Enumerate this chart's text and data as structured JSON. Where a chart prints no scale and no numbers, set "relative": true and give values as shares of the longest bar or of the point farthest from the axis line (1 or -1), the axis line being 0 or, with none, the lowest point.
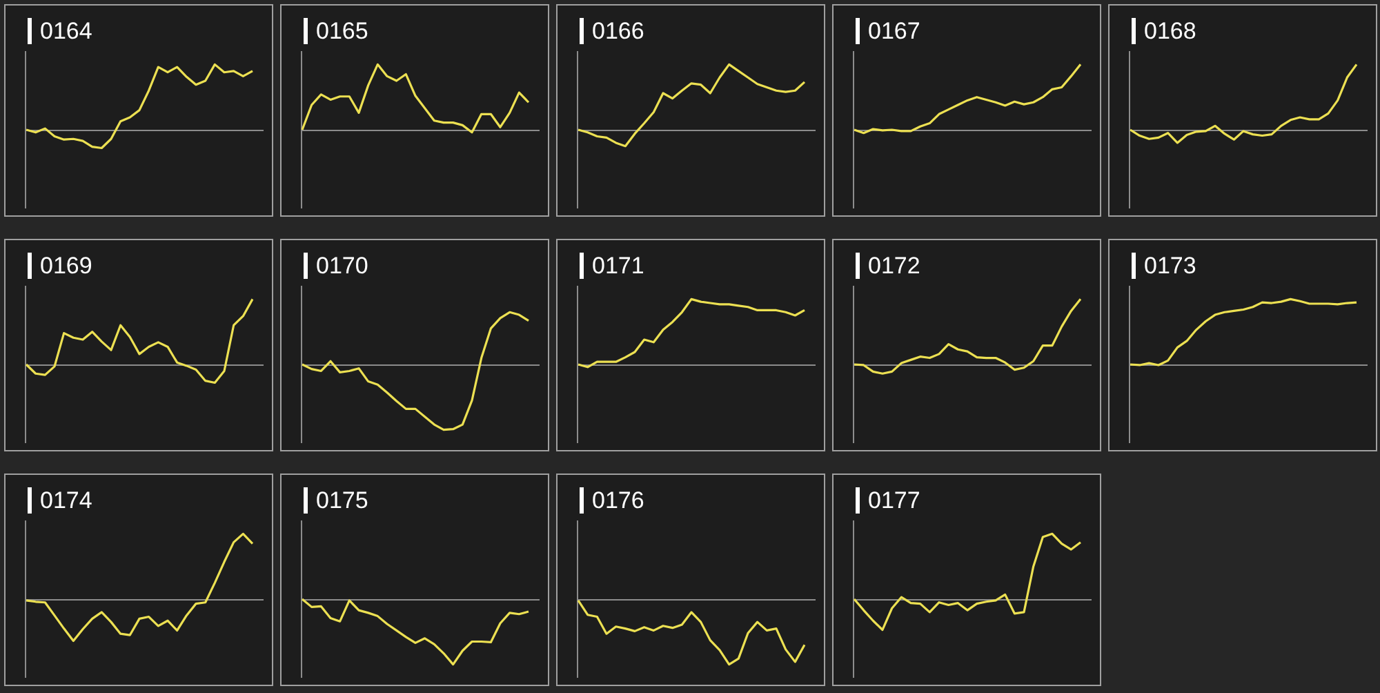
{
  "chart_data": [
    {
      "type": "line",
      "title": "0164",
      "relative": true,
      "color": "#ece052",
      "categories": [
        null,
        null,
        null,
        null,
        null,
        null,
        null,
        null,
        null,
        null,
        null,
        null,
        null,
        null,
        null,
        null,
        null,
        null,
        null,
        null,
        null,
        null,
        null,
        null,
        null
      ],
      "values": [
        0,
        -0.04,
        0.02,
        -0.1,
        -0.15,
        -0.14,
        -0.17,
        -0.26,
        -0.28,
        -0.14,
        0.13,
        0.19,
        0.3,
        0.6,
        0.96,
        0.88,
        0.96,
        0.81,
        0.69,
        0.75,
        1,
        0.88,
        0.9,
        0.82,
        0.9
      ]
    },
    {
      "type": "line",
      "title": "0165",
      "relative": true,
      "color": "#ece052",
      "categories": [
        null,
        null,
        null,
        null,
        null,
        null,
        null,
        null,
        null,
        null,
        null,
        null,
        null,
        null,
        null,
        null,
        null,
        null,
        null,
        null,
        null,
        null,
        null,
        null,
        null
      ],
      "values": [
        0,
        0.38,
        0.54,
        0.46,
        0.51,
        0.51,
        0.26,
        0.68,
        1,
        0.82,
        0.75,
        0.85,
        0.52,
        0.33,
        0.14,
        0.11,
        0.11,
        0.07,
        -0.04,
        0.24,
        0.24,
        0.04,
        0.26,
        0.57,
        0.42
      ]
    },
    {
      "type": "line",
      "title": "0166",
      "relative": true,
      "color": "#ece052",
      "categories": [
        null,
        null,
        null,
        null,
        null,
        null,
        null,
        null,
        null,
        null,
        null,
        null,
        null,
        null,
        null,
        null,
        null,
        null,
        null,
        null,
        null,
        null,
        null,
        null,
        null
      ],
      "values": [
        0,
        -0.04,
        -0.1,
        -0.12,
        -0.2,
        -0.25,
        -0.06,
        0.1,
        0.27,
        0.56,
        0.48,
        0.6,
        0.71,
        0.69,
        0.56,
        0.8,
        1,
        0.9,
        0.8,
        0.7,
        0.65,
        0.6,
        0.58,
        0.6,
        0.73
      ]
    },
    {
      "type": "line",
      "title": "0167",
      "relative": true,
      "color": "#ece052",
      "categories": [
        null,
        null,
        null,
        null,
        null,
        null,
        null,
        null,
        null,
        null,
        null,
        null,
        null,
        null,
        null,
        null,
        null,
        null,
        null,
        null,
        null,
        null,
        null,
        null,
        null
      ],
      "values": [
        0,
        -0.05,
        0.01,
        -0.01,
        0,
        -0.02,
        -0.02,
        0.05,
        0.1,
        0.24,
        0.31,
        0.38,
        0.45,
        0.5,
        0.46,
        0.42,
        0.37,
        0.43,
        0.39,
        0.42,
        0.5,
        0.62,
        0.65,
        0.82,
        1
      ]
    },
    {
      "type": "line",
      "title": "0168",
      "relative": true,
      "color": "#ece052",
      "categories": [
        null,
        null,
        null,
        null,
        null,
        null,
        null,
        null,
        null,
        null,
        null,
        null,
        null,
        null,
        null,
        null,
        null,
        null,
        null,
        null,
        null,
        null,
        null,
        null,
        null
      ],
      "values": [
        0,
        -0.09,
        -0.14,
        -0.12,
        -0.05,
        -0.2,
        -0.08,
        -0.03,
        -0.02,
        0.06,
        -0.06,
        -0.15,
        -0.02,
        -0.07,
        -0.09,
        -0.07,
        0.06,
        0.15,
        0.19,
        0.16,
        0.16,
        0.25,
        0.45,
        0.8,
        1
      ]
    },
    {
      "type": "line",
      "title": "0169",
      "relative": true,
      "color": "#ece052",
      "categories": [
        null,
        null,
        null,
        null,
        null,
        null,
        null,
        null,
        null,
        null,
        null,
        null,
        null,
        null,
        null,
        null,
        null,
        null,
        null,
        null,
        null,
        null,
        null,
        null,
        null
      ],
      "values": [
        0,
        -0.14,
        -0.16,
        -0.03,
        0.48,
        0.41,
        0.38,
        0.5,
        0.35,
        0.22,
        0.6,
        0.42,
        0.16,
        0.27,
        0.34,
        0.27,
        0.03,
        -0.02,
        -0.08,
        -0.25,
        -0.28,
        -0.1,
        0.6,
        0.74,
        1
      ]
    },
    {
      "type": "line",
      "title": "0170",
      "relative": true,
      "color": "#ece052",
      "categories": [
        null,
        null,
        null,
        null,
        null,
        null,
        null,
        null,
        null,
        null,
        null,
        null,
        null,
        null,
        null,
        null,
        null,
        null,
        null,
        null,
        null,
        null,
        null,
        null,
        null
      ],
      "values": [
        0,
        -0.07,
        -0.1,
        0.05,
        -0.12,
        -0.1,
        -0.06,
        -0.26,
        -0.31,
        -0.43,
        -0.56,
        -0.68,
        -0.68,
        -0.8,
        -0.92,
        -1,
        -0.99,
        -0.92,
        -0.55,
        0.1,
        0.55,
        0.71,
        0.8,
        0.76,
        0.67
      ]
    },
    {
      "type": "line",
      "title": "0171",
      "relative": true,
      "color": "#ece052",
      "categories": [
        null,
        null,
        null,
        null,
        null,
        null,
        null,
        null,
        null,
        null,
        null,
        null,
        null,
        null,
        null,
        null,
        null,
        null,
        null,
        null,
        null,
        null,
        null,
        null,
        null
      ],
      "values": [
        0,
        -0.04,
        0.04,
        0.04,
        0.04,
        0.11,
        0.19,
        0.38,
        0.34,
        0.53,
        0.65,
        0.8,
        1,
        0.96,
        0.94,
        0.92,
        0.92,
        0.9,
        0.88,
        0.83,
        0.83,
        0.83,
        0.8,
        0.75,
        0.83
      ]
    },
    {
      "type": "line",
      "title": "0172",
      "relative": true,
      "color": "#ece052",
      "categories": [
        null,
        null,
        null,
        null,
        null,
        null,
        null,
        null,
        null,
        null,
        null,
        null,
        null,
        null,
        null,
        null,
        null,
        null,
        null,
        null,
        null,
        null,
        null,
        null,
        null
      ],
      "values": [
        0,
        -0.01,
        -0.11,
        -0.14,
        -0.11,
        0.02,
        0.07,
        0.12,
        0.1,
        0.16,
        0.31,
        0.23,
        0.2,
        0.11,
        0.1,
        0.1,
        0.03,
        -0.08,
        -0.05,
        0.05,
        0.29,
        0.29,
        0.58,
        0.82,
        1
      ]
    },
    {
      "type": "line",
      "title": "0173",
      "relative": true,
      "color": "#ece052",
      "categories": [
        null,
        null,
        null,
        null,
        null,
        null,
        null,
        null,
        null,
        null,
        null,
        null,
        null,
        null,
        null,
        null,
        null,
        null,
        null,
        null,
        null,
        null,
        null,
        null,
        null
      ],
      "values": [
        0,
        -0.01,
        0.02,
        -0.01,
        0.06,
        0.26,
        0.36,
        0.53,
        0.66,
        0.76,
        0.8,
        0.82,
        0.84,
        0.88,
        0.95,
        0.94,
        0.96,
        1,
        0.97,
        0.93,
        0.93,
        0.93,
        0.92,
        0.94,
        0.95
      ]
    },
    {
      "type": "line",
      "title": "0174",
      "relative": true,
      "color": "#ece052",
      "categories": [
        null,
        null,
        null,
        null,
        null,
        null,
        null,
        null,
        null,
        null,
        null,
        null,
        null,
        null,
        null,
        null,
        null,
        null,
        null,
        null,
        null,
        null,
        null,
        null,
        null
      ],
      "values": [
        -0.02,
        -0.04,
        -0.05,
        -0.25,
        -0.45,
        -0.64,
        -0.46,
        -0.3,
        -0.2,
        -0.35,
        -0.53,
        -0.55,
        -0.3,
        -0.27,
        -0.41,
        -0.33,
        -0.48,
        -0.25,
        -0.07,
        -0.05,
        0.25,
        0.57,
        0.87,
        1,
        0.85
      ]
    },
    {
      "type": "line",
      "title": "0175",
      "relative": true,
      "color": "#ece052",
      "categories": [
        null,
        null,
        null,
        null,
        null,
        null,
        null,
        null,
        null,
        null,
        null,
        null,
        null,
        null,
        null,
        null,
        null,
        null,
        null,
        null,
        null,
        null,
        null,
        null,
        null
      ],
      "values": [
        0,
        -0.12,
        -0.11,
        -0.29,
        -0.34,
        -0.02,
        -0.17,
        -0.21,
        -0.26,
        -0.38,
        -0.48,
        -0.58,
        -0.67,
        -0.6,
        -0.69,
        -0.83,
        -1,
        -0.79,
        -0.65,
        -0.65,
        -0.66,
        -0.37,
        -0.21,
        -0.23,
        -0.19
      ]
    },
    {
      "type": "line",
      "title": "0176",
      "relative": true,
      "color": "#ece052",
      "categories": [
        null,
        null,
        null,
        null,
        null,
        null,
        null,
        null,
        null,
        null,
        null,
        null,
        null,
        null,
        null,
        null,
        null,
        null,
        null,
        null,
        null,
        null,
        null,
        null,
        null
      ],
      "values": [
        -0.02,
        -0.24,
        -0.27,
        -0.53,
        -0.42,
        -0.45,
        -0.49,
        -0.43,
        -0.48,
        -0.41,
        -0.44,
        -0.39,
        -0.2,
        -0.35,
        -0.63,
        -0.78,
        -1,
        -0.91,
        -0.52,
        -0.35,
        -0.48,
        -0.45,
        -0.77,
        -0.96,
        -0.7
      ]
    },
    {
      "type": "line",
      "title": "0177",
      "relative": true,
      "color": "#ece052",
      "categories": [
        null,
        null,
        null,
        null,
        null,
        null,
        null,
        null,
        null,
        null,
        null,
        null,
        null,
        null,
        null,
        null,
        null,
        null,
        null,
        null,
        null,
        null,
        null,
        null,
        null
      ],
      "values": [
        0,
        -0.17,
        -0.33,
        -0.47,
        -0.14,
        0.03,
        -0.06,
        -0.07,
        -0.2,
        -0.05,
        -0.09,
        -0.06,
        -0.17,
        -0.07,
        -0.04,
        -0.02,
        0.07,
        -0.22,
        -0.2,
        0.5,
        0.95,
        1,
        0.85,
        0.76,
        0.87
      ]
    }
  ]
}
